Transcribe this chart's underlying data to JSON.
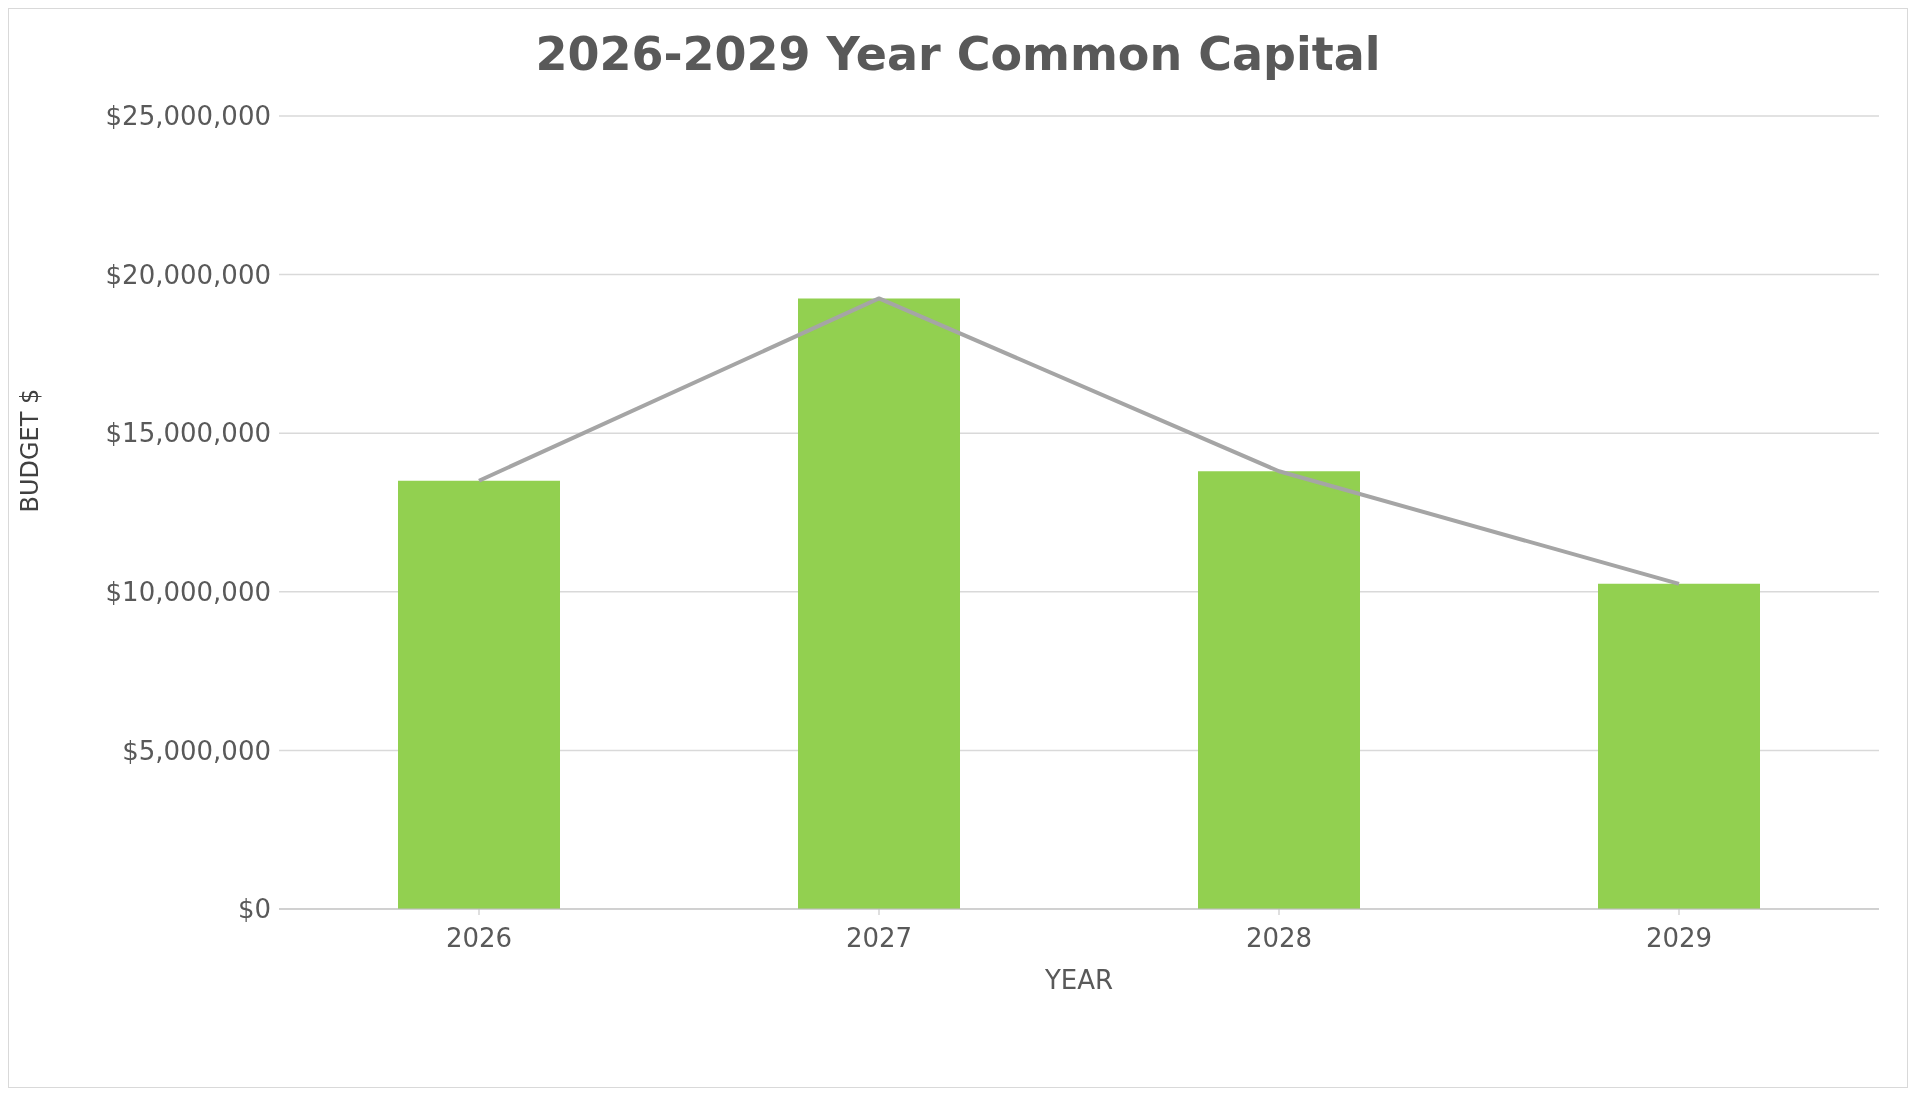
{
  "chart_data": {
    "type": "bar",
    "title": "2026-2029 Year Common Capital",
    "xlabel": "YEAR",
    "ylabel": "BUDGET $",
    "categories": [
      "2026",
      "2027",
      "2028",
      "2029"
    ],
    "series": [
      {
        "color": "#92d050",
        "values": [
          13500000,
          19250000,
          13800000,
          10250000
        ]
      },
      {
        "type": "line",
        "color": "#a5a5a5",
        "values": [
          13500000,
          19250000,
          13800000,
          10250000
        ]
      }
    ],
    "ylim": [
      0,
      25000000
    ],
    "yticks": [
      {
        "value": 0,
        "label": "$0"
      },
      {
        "value": 5000000,
        "label": "$5,000,000"
      },
      {
        "value": 10000000,
        "label": "$10,000,000"
      },
      {
        "value": 15000000,
        "label": "$15,000,000"
      },
      {
        "value": 20000000,
        "label": "$20,000,000"
      },
      {
        "value": 25000000,
        "label": "$25,000,000"
      }
    ],
    "grid": "y",
    "legend": false,
    "marker": "none",
    "line_style": "solid"
  }
}
